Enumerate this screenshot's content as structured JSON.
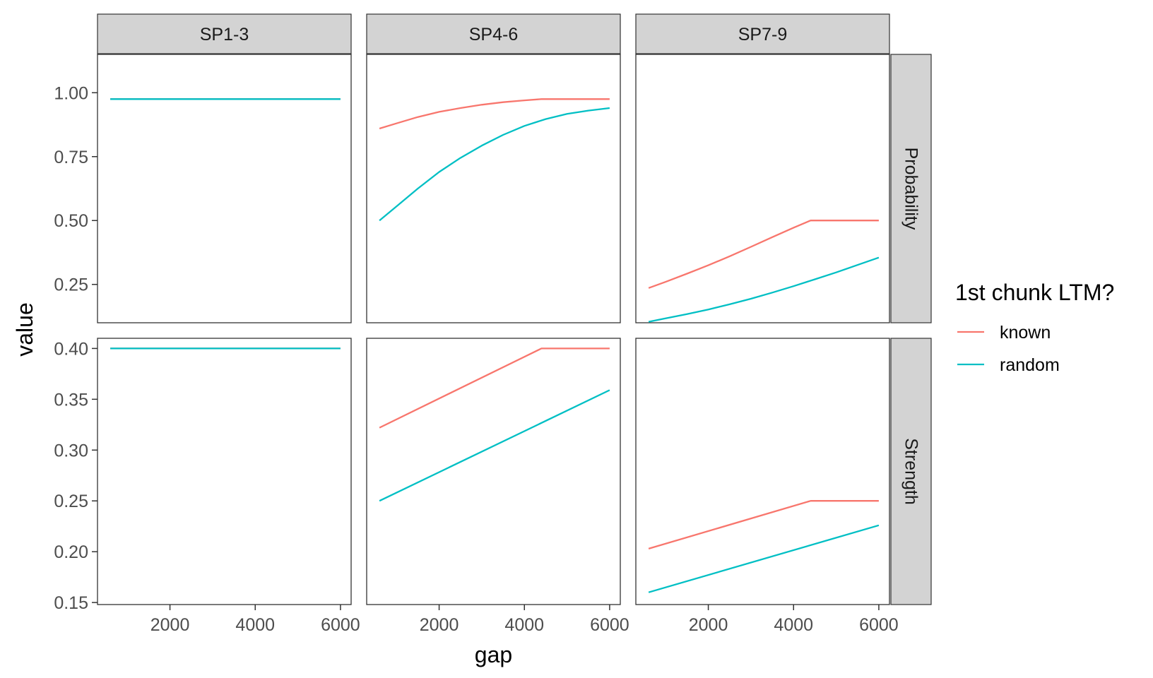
{
  "chart_data": {
    "type": "line",
    "xlabel": "gap",
    "ylabel": "value",
    "x_ticks": [
      2000,
      4000,
      6000
    ],
    "xlim": [
      300,
      6250
    ],
    "columns": [
      "SP1-3",
      "SP4-6",
      "SP7-9"
    ],
    "rows": [
      {
        "name": "Probability",
        "ylim": [
          0.1,
          1.15
        ],
        "ticks": [
          0.25,
          0.5,
          0.75,
          1.0
        ],
        "tick_labels": [
          "0.25",
          "0.50",
          "0.75",
          "1.00"
        ]
      },
      {
        "name": "Strength",
        "ylim": [
          0.148,
          0.41
        ],
        "ticks": [
          0.15,
          0.2,
          0.25,
          0.3,
          0.35,
          0.4
        ],
        "tick_labels": [
          "0.15",
          "0.20",
          "0.25",
          "0.30",
          "0.35",
          "0.40"
        ]
      }
    ],
    "legend": {
      "title": "1st chunk LTM?",
      "position": "right",
      "items": [
        {
          "label": "known",
          "color": "#F8766D"
        },
        {
          "label": "random",
          "color": "#00BFC4"
        }
      ]
    },
    "panels": [
      {
        "row": "Probability",
        "col": "SP1-3",
        "series": [
          {
            "name": "known",
            "x": [
              600,
              6000
            ],
            "y": [
              0.975,
              0.975
            ]
          },
          {
            "name": "random",
            "x": [
              600,
              6000
            ],
            "y": [
              0.975,
              0.975
            ]
          }
        ]
      },
      {
        "row": "Probability",
        "col": "SP4-6",
        "series": [
          {
            "name": "known",
            "x": [
              600,
              1000,
              1500,
              2000,
              2500,
              3000,
              3500,
              4000,
              4400,
              5000,
              6000
            ],
            "y": [
              0.86,
              0.88,
              0.905,
              0.925,
              0.94,
              0.953,
              0.963,
              0.97,
              0.975,
              0.975,
              0.975
            ]
          },
          {
            "name": "random",
            "x": [
              600,
              1000,
              1500,
              2000,
              2500,
              3000,
              3500,
              4000,
              4500,
              5000,
              5500,
              6000
            ],
            "y": [
              0.5,
              0.555,
              0.625,
              0.69,
              0.745,
              0.793,
              0.835,
              0.87,
              0.897,
              0.917,
              0.93,
              0.94
            ]
          }
        ]
      },
      {
        "row": "Probability",
        "col": "SP7-9",
        "series": [
          {
            "name": "known",
            "x": [
              600,
              1000,
              1500,
              2000,
              2500,
              3000,
              3500,
              4000,
              4400,
              5000,
              6000
            ],
            "y": [
              0.236,
              0.26,
              0.292,
              0.325,
              0.36,
              0.397,
              0.435,
              0.472,
              0.5,
              0.5,
              0.5
            ]
          },
          {
            "name": "random",
            "x": [
              600,
              1000,
              1500,
              2000,
              2500,
              3000,
              3500,
              4000,
              4500,
              5000,
              5500,
              6000
            ],
            "y": [
              0.104,
              0.117,
              0.134,
              0.152,
              0.172,
              0.194,
              0.218,
              0.243,
              0.27,
              0.297,
              0.326,
              0.355
            ]
          }
        ]
      },
      {
        "row": "Strength",
        "col": "SP1-3",
        "series": [
          {
            "name": "known",
            "x": [
              600,
              6000
            ],
            "y": [
              0.4,
              0.4
            ]
          },
          {
            "name": "random",
            "x": [
              600,
              6000
            ],
            "y": [
              0.4,
              0.4
            ]
          }
        ]
      },
      {
        "row": "Strength",
        "col": "SP4-6",
        "series": [
          {
            "name": "known",
            "x": [
              600,
              4400,
              6000
            ],
            "y": [
              0.322,
              0.4,
              0.4
            ]
          },
          {
            "name": "random",
            "x": [
              600,
              6000
            ],
            "y": [
              0.25,
              0.359
            ]
          }
        ]
      },
      {
        "row": "Strength",
        "col": "SP7-9",
        "series": [
          {
            "name": "known",
            "x": [
              600,
              4400,
              6000
            ],
            "y": [
              0.203,
              0.25,
              0.25
            ]
          },
          {
            "name": "random",
            "x": [
              600,
              6000
            ],
            "y": [
              0.16,
              0.226
            ]
          }
        ]
      }
    ]
  }
}
